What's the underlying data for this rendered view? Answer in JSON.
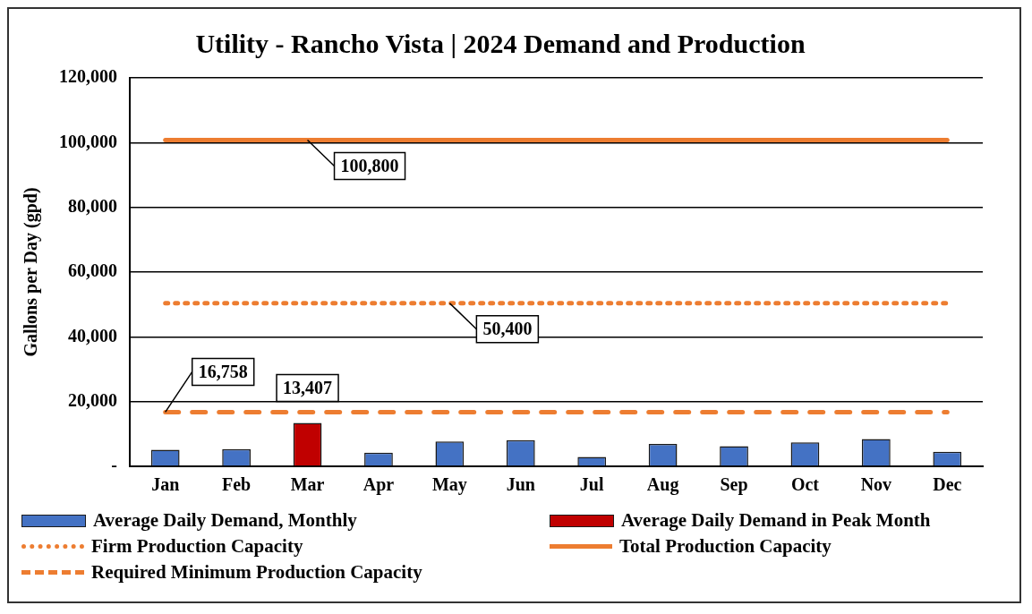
{
  "chart_data": {
    "type": "bar",
    "title": "Utility - Rancho Vista | 2024 Demand and Production",
    "ylabel": "Gallons per Day (gpd)",
    "categories": [
      "Jan",
      "Feb",
      "Mar",
      "Apr",
      "May",
      "Jun",
      "Jul",
      "Aug",
      "Sep",
      "Oct",
      "Nov",
      "Dec"
    ],
    "series": [
      {
        "name": "Average Daily Demand, Monthly",
        "color": "#4472c4",
        "values": [
          5100,
          5300,
          null,
          4200,
          7700,
          8100,
          2900,
          6900,
          6200,
          7400,
          8400,
          4500
        ]
      },
      {
        "name": "Average Daily Demand in Peak Month",
        "color": "#c00000",
        "values": [
          null,
          null,
          13407,
          null,
          null,
          null,
          null,
          null,
          null,
          null,
          null,
          null
        ],
        "value_labels": [
          null,
          null,
          "13,407",
          null,
          null,
          null,
          null,
          null,
          null,
          null,
          null,
          null
        ]
      },
      {
        "name": "Firm Production Capacity",
        "type": "line",
        "color": "#ed7d31",
        "line_style": "dotted",
        "values": [
          50400,
          50400,
          50400,
          50400,
          50400,
          50400,
          50400,
          50400,
          50400,
          50400,
          50400,
          50400
        ],
        "value_labels": [
          null,
          null,
          null,
          null,
          "50,400",
          null,
          null,
          null,
          null,
          null,
          null,
          null
        ]
      },
      {
        "name": "Total Production Capacity",
        "type": "line",
        "color": "#ed7d31",
        "line_style": "solid",
        "values": [
          100800,
          100800,
          100800,
          100800,
          100800,
          100800,
          100800,
          100800,
          100800,
          100800,
          100800,
          100800
        ],
        "value_labels": [
          null,
          null,
          "100,800",
          null,
          null,
          null,
          null,
          null,
          null,
          null,
          null,
          null
        ]
      },
      {
        "name": "Required Minimum Production Capacity",
        "type": "line",
        "color": "#ed7d31",
        "line_style": "dashed",
        "values": [
          16758,
          16758,
          16758,
          16758,
          16758,
          16758,
          16758,
          16758,
          16758,
          16758,
          16758,
          16758
        ],
        "value_labels": [
          "16,758",
          null,
          null,
          null,
          null,
          null,
          null,
          null,
          null,
          null,
          null,
          null
        ]
      }
    ],
    "stacked": true,
    "marker": "none",
    "ylim": [
      0,
      120000
    ],
    "yticks": [
      {
        "value": 0,
        "label": "-"
      },
      {
        "value": 20000,
        "label": "20,000"
      },
      {
        "value": 40000,
        "label": "40,000"
      },
      {
        "value": 60000,
        "label": "60,000"
      },
      {
        "value": 80000,
        "label": "80,000"
      },
      {
        "value": 100000,
        "label": "100,000"
      },
      {
        "value": 120000,
        "label": "120,000"
      }
    ],
    "grid": "y",
    "legend": "bottom"
  }
}
